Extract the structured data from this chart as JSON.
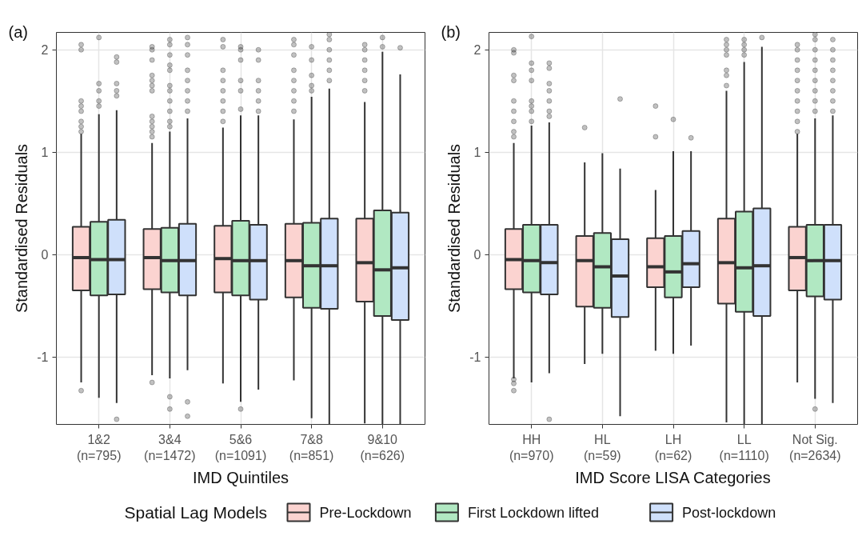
{
  "chart_data": [
    {
      "type": "box",
      "title": "(a)",
      "xlabel": "IMD Quintiles",
      "ylabel": "Standardised Residuals",
      "categories": [
        "1&2\n(n=795)",
        "3&4\n(n=1472)",
        "5&6\n(n=1091)",
        "7&8\n(n=851)",
        "9&10\n(n=626)"
      ],
      "ylim": [
        -1.66,
        2.17
      ],
      "yticks": [
        -1,
        0,
        1,
        2
      ],
      "grid": true,
      "legend": "bottom",
      "legend_title": "Spatial Lag Models",
      "series": [
        {
          "name": "Pre-Lockdown",
          "color": "#fbd3d0",
          "boxes": [
            {
              "low": -1.25,
              "q1": -0.35,
              "median": -0.03,
              "q3": 0.27,
              "high": 1.18,
              "outliers": [
                2.05,
                2.0,
                1.5,
                1.45,
                1.4,
                1.3,
                1.25,
                1.2,
                -1.33
              ]
            },
            {
              "low": -1.18,
              "q1": -0.34,
              "median": -0.03,
              "q3": 0.25,
              "high": 1.09,
              "outliers": [
                1.15,
                1.2,
                1.25,
                1.3,
                1.35,
                1.6,
                1.65,
                1.7,
                1.75,
                1.9,
                2.0,
                2.03,
                -1.25
              ]
            },
            {
              "low": -1.26,
              "q1": -0.37,
              "median": -0.04,
              "q3": 0.28,
              "high": 1.24,
              "outliers": [
                1.3,
                1.4,
                1.5,
                1.6,
                1.7,
                1.8,
                2.03,
                2.1
              ]
            },
            {
              "low": -1.23,
              "q1": -0.42,
              "median": -0.06,
              "q3": 0.3,
              "high": 1.32,
              "outliers": [
                1.4,
                1.5,
                1.6,
                1.7,
                1.8,
                1.95,
                2.05,
                2.1
              ]
            },
            {
              "low": -1.65,
              "q1": -0.46,
              "median": -0.08,
              "q3": 0.35,
              "high": 1.49,
              "outliers": [
                1.6,
                1.7,
                1.8,
                1.9,
                2.0,
                2.05
              ]
            }
          ]
        },
        {
          "name": "First Lockdown lifted",
          "color": "#b1e8c2",
          "boxes": [
            {
              "low": -1.4,
              "q1": -0.4,
              "median": -0.05,
              "q3": 0.32,
              "high": 1.37,
              "outliers": [
                1.45,
                1.5,
                1.6,
                1.67,
                2.12
              ]
            },
            {
              "low": -1.21,
              "q1": -0.37,
              "median": -0.06,
              "q3": 0.26,
              "high": 1.2,
              "outliers": [
                1.25,
                1.3,
                1.4,
                1.5,
                1.6,
                1.65,
                1.8,
                1.85,
                1.95,
                2.05,
                2.1,
                -1.39,
                -1.51
              ]
            },
            {
              "low": -1.44,
              "q1": -0.4,
              "median": -0.06,
              "q3": 0.33,
              "high": 1.36,
              "outliers": [
                1.42,
                1.6,
                1.7,
                1.9,
                2.0,
                2.03,
                -1.51
              ]
            },
            {
              "low": -1.6,
              "q1": -0.52,
              "median": -0.11,
              "q3": 0.31,
              "high": 1.54,
              "outliers": [
                1.6,
                1.65,
                1.75,
                1.9,
                2.03
              ]
            },
            {
              "low": -1.66,
              "q1": -0.6,
              "median": -0.15,
              "q3": 0.43,
              "high": 1.98,
              "outliers": [
                2.03,
                2.12
              ]
            }
          ]
        },
        {
          "name": "Post-lockdown",
          "color": "#cfe0fb",
          "boxes": [
            {
              "low": -1.45,
              "q1": -0.39,
              "median": -0.05,
              "q3": 0.34,
              "high": 1.41,
              "outliers": [
                1.55,
                1.6,
                1.67,
                1.88,
                1.93,
                -1.61
              ]
            },
            {
              "low": -1.13,
              "q1": -0.4,
              "median": -0.06,
              "q3": 0.3,
              "high": 1.33,
              "outliers": [
                1.4,
                1.5,
                1.6,
                1.7,
                1.8,
                1.95,
                2.05,
                2.12,
                -1.44,
                -1.58
              ]
            },
            {
              "low": -1.32,
              "q1": -0.44,
              "median": -0.06,
              "q3": 0.29,
              "high": 1.36,
              "outliers": [
                1.4,
                1.5,
                1.6,
                1.7,
                1.9,
                2.0
              ]
            },
            {
              "low": -1.66,
              "q1": -0.53,
              "median": -0.11,
              "q3": 0.35,
              "high": 1.62,
              "outliers": [
                1.7,
                1.8,
                1.9,
                2.0,
                2.1,
                2.15
              ]
            },
            {
              "low": -1.66,
              "q1": -0.64,
              "median": -0.13,
              "q3": 0.41,
              "high": 1.76,
              "outliers": [
                2.02
              ]
            }
          ]
        }
      ]
    },
    {
      "type": "box",
      "title": "(b)",
      "xlabel": "IMD Score LISA Categories",
      "ylabel": "Standardised Residuals",
      "categories": [
        "HH\n(n=970)",
        "HL\n(n=59)",
        "LH\n(n=62)",
        "LL\n(n=1110)",
        "Not Sig.\n(n=2634)"
      ],
      "ylim": [
        -1.66,
        2.17
      ],
      "yticks": [
        -1,
        0,
        1,
        2
      ],
      "grid": true,
      "series": [
        {
          "color": "#fbd3d0",
          "boxes": [
            {
              "low": -1.21,
              "q1": -0.34,
              "median": -0.05,
              "q3": 0.25,
              "high": 1.09,
              "outliers": [
                1.15,
                1.2,
                1.3,
                1.4,
                1.5,
                1.7,
                1.75,
                1.97,
                2.0,
                -1.22,
                -1.26,
                -1.33
              ]
            },
            {
              "low": -1.07,
              "q1": -0.51,
              "median": -0.06,
              "q3": 0.18,
              "high": 0.9,
              "outliers": [
                1.24
              ]
            },
            {
              "low": -0.94,
              "q1": -0.32,
              "median": -0.12,
              "q3": 0.16,
              "high": 0.63,
              "outliers": [
                1.15,
                1.45
              ]
            },
            {
              "low": -1.64,
              "q1": -0.48,
              "median": -0.08,
              "q3": 0.35,
              "high": 1.6,
              "outliers": [
                1.65,
                1.75,
                1.8,
                1.95,
                2.0,
                2.05,
                2.1
              ]
            },
            {
              "low": -1.25,
              "q1": -0.35,
              "median": -0.03,
              "q3": 0.27,
              "high": 1.18,
              "outliers": [
                1.2,
                1.3,
                1.4,
                1.5,
                1.6,
                1.7,
                1.8,
                1.9,
                2.0,
                2.05
              ]
            }
          ]
        },
        {
          "color": "#b1e8c2",
          "boxes": [
            {
              "low": -1.25,
              "q1": -0.37,
              "median": -0.06,
              "q3": 0.29,
              "high": 1.26,
              "outliers": [
                1.3,
                1.4,
                1.45,
                1.5,
                1.7,
                1.8,
                1.87,
                2.13
              ]
            },
            {
              "low": -0.97,
              "q1": -0.52,
              "median": -0.12,
              "q3": 0.21,
              "high": 0.99
            },
            {
              "low": -0.97,
              "q1": -0.42,
              "median": -0.17,
              "q3": 0.18,
              "high": 1.01,
              "outliers": [
                1.32
              ]
            },
            {
              "low": -1.66,
              "q1": -0.56,
              "median": -0.13,
              "q3": 0.42,
              "high": 1.88,
              "outliers": [
                1.95,
                2.0,
                2.05,
                2.1
              ]
            },
            {
              "low": -1.41,
              "q1": -0.41,
              "median": -0.06,
              "q3": 0.29,
              "high": 1.33,
              "outliers": [
                1.4,
                1.5,
                1.6,
                1.7,
                1.8,
                1.9,
                2.0,
                2.1,
                2.15,
                -1.51
              ]
            }
          ]
        },
        {
          "color": "#cfe0fb",
          "boxes": [
            {
              "low": -1.16,
              "q1": -0.39,
              "median": -0.08,
              "q3": 0.29,
              "high": 1.29,
              "outliers": [
                1.35,
                1.4,
                1.5,
                1.6,
                1.67,
                1.82,
                1.87,
                -1.61
              ]
            },
            {
              "low": -1.58,
              "q1": -0.61,
              "median": -0.21,
              "q3": 0.15,
              "high": 0.84,
              "outliers": [
                1.52
              ]
            },
            {
              "low": -0.89,
              "q1": -0.32,
              "median": -0.09,
              "q3": 0.23,
              "high": 1.01,
              "outliers": [
                1.14
              ]
            },
            {
              "low": -1.66,
              "q1": -0.6,
              "median": -0.11,
              "q3": 0.45,
              "high": 2.03,
              "outliers": [
                2.12
              ]
            },
            {
              "low": -1.45,
              "q1": -0.44,
              "median": -0.06,
              "q3": 0.29,
              "high": 1.36,
              "outliers": [
                1.4,
                1.5,
                1.6,
                1.7,
                1.8,
                1.9,
                2.0,
                2.1
              ]
            }
          ]
        }
      ]
    }
  ]
}
